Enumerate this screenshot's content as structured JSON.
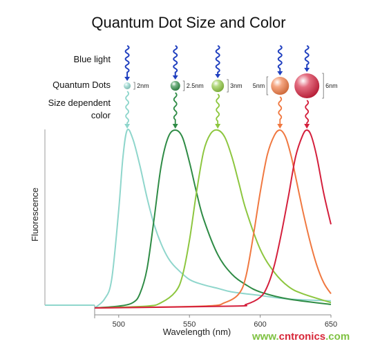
{
  "chart_data": {
    "type": "line",
    "title": "Quantum Dot Size and Color",
    "xlabel": "Wavelength (nm)",
    "ylabel": "Fluorescence",
    "xlim": [
      483,
      650
    ],
    "ylim": [
      0,
      1
    ],
    "xticks": [
      500,
      550,
      600,
      650
    ],
    "grid": false,
    "row_labels": {
      "blue_light": "Blue light",
      "quantum_dots": "Quantum Dots",
      "size_color": [
        "Size dependent",
        "color"
      ]
    },
    "series": [
      {
        "size_label": "2nm",
        "peak_nm": 506,
        "color": "#8fd6cc",
        "x": [
          483,
          490,
          495,
          500,
          503,
          506,
          510,
          515,
          520,
          525,
          530,
          535,
          540,
          550,
          560,
          570,
          580,
          600,
          620,
          650
        ],
        "y": [
          0.0,
          0.05,
          0.16,
          0.55,
          0.85,
          1.0,
          0.95,
          0.8,
          0.62,
          0.47,
          0.36,
          0.28,
          0.23,
          0.16,
          0.13,
          0.11,
          0.09,
          0.07,
          0.05,
          0.04
        ]
      },
      {
        "size_label": "2.5nm",
        "peak_nm": 540,
        "color": "#2e8b45",
        "x": [
          483,
          500,
          510,
          515,
          520,
          525,
          530,
          535,
          540,
          545,
          550,
          555,
          560,
          570,
          580,
          590,
          600,
          620,
          650
        ],
        "y": [
          0.0,
          0.01,
          0.03,
          0.08,
          0.22,
          0.5,
          0.8,
          0.96,
          1.0,
          0.96,
          0.82,
          0.65,
          0.5,
          0.3,
          0.19,
          0.13,
          0.09,
          0.05,
          0.02
        ]
      },
      {
        "size_label": "3nm",
        "peak_nm": 570,
        "color": "#8dc63f",
        "x": [
          483,
          520,
          530,
          540,
          545,
          550,
          555,
          560,
          565,
          570,
          575,
          580,
          585,
          590,
          600,
          610,
          620,
          630,
          650
        ],
        "y": [
          0.0,
          0.01,
          0.03,
          0.09,
          0.18,
          0.38,
          0.65,
          0.88,
          0.98,
          1.0,
          0.96,
          0.85,
          0.7,
          0.55,
          0.33,
          0.2,
          0.12,
          0.08,
          0.03
        ]
      },
      {
        "size_label": "5nm",
        "peak_nm": 614,
        "color": "#f07840",
        "x": [
          483,
          560,
          575,
          585,
          590,
          595,
          600,
          605,
          610,
          614,
          618,
          622,
          626,
          630,
          635,
          640,
          645,
          650
        ],
        "y": [
          0.0,
          0.01,
          0.03,
          0.08,
          0.18,
          0.4,
          0.65,
          0.86,
          0.97,
          1.0,
          0.96,
          0.85,
          0.7,
          0.55,
          0.38,
          0.24,
          0.14,
          0.08
        ]
      },
      {
        "size_label": "6nm",
        "peak_nm": 633,
        "color": "#d41f3c",
        "x": [
          483,
          580,
          590,
          600,
          605,
          610,
          615,
          620,
          625,
          630,
          633,
          636,
          640,
          645,
          650
        ],
        "y": [
          0.0,
          0.01,
          0.02,
          0.06,
          0.12,
          0.24,
          0.42,
          0.63,
          0.85,
          0.97,
          1.0,
          0.97,
          0.85,
          0.64,
          0.47
        ]
      }
    ]
  },
  "watermark": {
    "text": "www.cntronics.com",
    "colors": [
      "#7fc242",
      "#d72638"
    ]
  }
}
